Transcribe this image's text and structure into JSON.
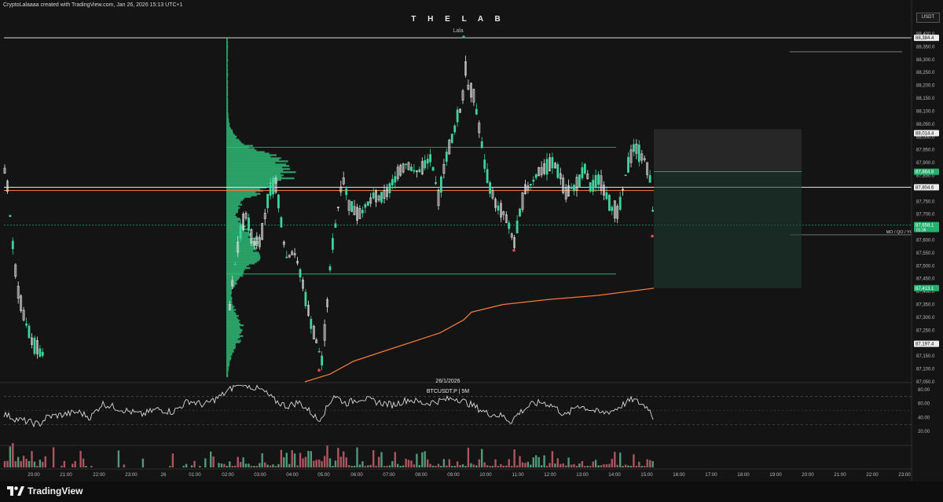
{
  "header": {
    "credit": "CryptoLalaaaa created with TradingView.com, Jan 26, 2026 15:13 UTC+1",
    "title": "T H E  L A B",
    "subtitle": "Lala",
    "currency": "USDT"
  },
  "chart_center": {
    "date": "26/1/2026",
    "symbol_interval": "BTCUSDT.P | 5M"
  },
  "footer": {
    "brand": "TradingView",
    "logo_icon": "tradingview-logo-icon"
  },
  "colors": {
    "background": "#141414",
    "up": "#e6e6e6",
    "down": "#3fd49b",
    "volume_profile": "#2fbf7a",
    "vwap": "#f07a3a",
    "level_line": "#e0e0e0",
    "current_price_line": "#f07a3a",
    "rsi": "#d8d8d8",
    "volume_up": "#63c79a",
    "volume_down": "#e26a7a",
    "target_box": "#1e3a30"
  },
  "chart_data": {
    "type": "candlestick",
    "symbol": "BTCUSDT.P",
    "interval": "5M",
    "price_axis": {
      "ylim": [
        87050,
        88425
      ],
      "ticks": [
        "88,400.0",
        "88,350.0",
        "88,300.0",
        "88,250.0",
        "88,200.0",
        "88,150.0",
        "88,100.0",
        "88,050.0",
        "88,000.0",
        "87,950.0",
        "87,900.0",
        "87,850.0",
        "87,800.0",
        "87,750.0",
        "87,700.0",
        "87,650.0",
        "87,600.0",
        "87,550.0",
        "87,500.0",
        "87,450.0",
        "87,400.0",
        "87,350.0",
        "87,300.0",
        "87,250.0",
        "87,200.0",
        "87,150.0",
        "87,100.0",
        "87,050.0"
      ]
    },
    "time_axis": {
      "ticks": [
        "20:00",
        "21:00",
        "22:00",
        "23:00",
        "26",
        "01:00",
        "02:00",
        "03:00",
        "04:00",
        "05:00",
        "06:00",
        "07:00",
        "08:00",
        "09:00",
        "10:00",
        "11:00",
        "12:00",
        "13:00",
        "14:00",
        "15:00",
        "16:00",
        "17:00",
        "18:00",
        "19:00",
        "20:00",
        "21:00",
        "22:00",
        "23:00"
      ],
      "tick_x": [
        43,
        84,
        126,
        167,
        208,
        248,
        290,
        331,
        372,
        412,
        454,
        495,
        536,
        577,
        618,
        659,
        700,
        741,
        782,
        823,
        864,
        905,
        946,
        987,
        1028,
        1069,
        1110,
        1151
      ]
    },
    "price_labels": [
      {
        "text": "88,384.4",
        "price": 88384.4,
        "style": "level"
      },
      {
        "text": "88,014.4",
        "price": 88014.4,
        "style": "level"
      },
      {
        "text": "87,864.8",
        "price": 87864.8,
        "style": "green"
      },
      {
        "text": "87,804.6",
        "price": 87804.6,
        "style": "level"
      },
      {
        "text": "87,658.1",
        "sub": "01:36",
        "price": 87658.1,
        "style": "green"
      },
      {
        "text": "87,413.1",
        "price": 87413.1,
        "style": "green"
      },
      {
        "text": "87,197.4",
        "price": 87197.4,
        "style": "level"
      }
    ],
    "annotations": [
      {
        "text": "MO / QO / YO",
        "price": 87620
      }
    ],
    "levels": [
      {
        "name": "ath",
        "price": 88384.4
      },
      {
        "name": "level-87804",
        "price": 87804.6
      },
      {
        "name": "value-area-high",
        "price": 87960
      },
      {
        "name": "value-area-low",
        "price": 87468
      }
    ],
    "current_price": 87658.1,
    "rsi": {
      "ylim": [
        0,
        90
      ],
      "ticks": [
        "80.00",
        "60.00",
        "40.00",
        "20.00"
      ]
    }
  }
}
